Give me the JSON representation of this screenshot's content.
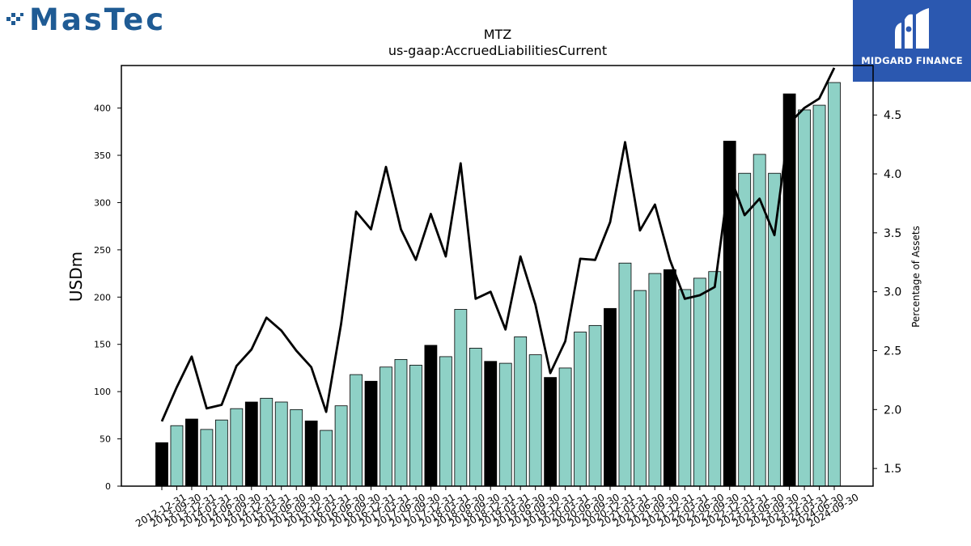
{
  "logos": {
    "left": {
      "text": "MasTec",
      "icon": "pixel-mark-icon",
      "color": "#1f5b94"
    },
    "right": {
      "text": "MIDGARD FINANCE",
      "icon": "midgard-bars-icon",
      "background": "#2b58b0"
    }
  },
  "chart_data": {
    "type": "bar",
    "title": "MTZ",
    "subtitle": "us-gaap:AccruedLiabilitiesCurrent",
    "ylabel": "USDm",
    "y2label": "Percentage of Assets",
    "ylim": [
      0,
      445
    ],
    "y2lim": [
      1.35,
      4.92
    ],
    "yticks": [
      0,
      50,
      100,
      150,
      200,
      250,
      300,
      350,
      400
    ],
    "y2ticks": [
      1.5,
      2.0,
      2.5,
      3.0,
      3.5,
      4.0,
      4.5
    ],
    "grid": false,
    "colors": {
      "q4_bar": "#000000",
      "other_bar": "#8ed1c6",
      "line": "#000000"
    },
    "categories": [
      "2012-12-31",
      "2013-09-30",
      "2013-12-31",
      "2014-03-31",
      "2014-06-30",
      "2014-09-30",
      "2014-12-31",
      "2015-03-31",
      "2015-06-30",
      "2015-09-30",
      "2015-12-31",
      "2016-03-31",
      "2016-06-30",
      "2016-09-30",
      "2016-12-31",
      "2017-03-31",
      "2017-06-30",
      "2017-09-30",
      "2017-12-31",
      "2018-03-31",
      "2018-06-30",
      "2018-09-30",
      "2018-12-31",
      "2019-03-31",
      "2019-06-30",
      "2019-09-30",
      "2019-12-31",
      "2020-03-31",
      "2020-06-30",
      "2020-09-30",
      "2020-12-31",
      "2021-03-31",
      "2021-06-30",
      "2021-09-30",
      "2021-12-31",
      "2022-03-31",
      "2022-06-30",
      "2022-09-30",
      "2022-12-31",
      "2023-03-31",
      "2023-06-30",
      "2023-09-30",
      "2023-12-31",
      "2024-03-31",
      "2024-06-30",
      "2024-09-30"
    ],
    "series": [
      {
        "type": "bar",
        "axis": "left",
        "values": [
          46,
          64,
          71,
          60,
          70,
          82,
          89,
          93,
          89,
          81,
          69,
          59,
          85,
          118,
          111,
          126,
          134,
          128,
          149,
          137,
          187,
          146,
          132,
          130,
          158,
          139,
          115,
          125,
          163,
          170,
          188,
          236,
          207,
          225,
          229,
          208,
          220,
          227,
          365,
          331,
          351,
          331,
          415,
          398,
          403,
          427
        ]
      },
      {
        "type": "line",
        "axis": "right",
        "values": [
          1.9,
          2.19,
          2.45,
          2.01,
          2.04,
          2.37,
          2.51,
          2.78,
          2.67,
          2.5,
          2.36,
          1.98,
          2.73,
          3.68,
          3.53,
          4.06,
          3.53,
          3.27,
          3.66,
          3.3,
          4.09,
          2.94,
          3.0,
          2.68,
          3.3,
          2.89,
          2.31,
          2.58,
          3.28,
          3.27,
          3.59,
          4.27,
          3.52,
          3.74,
          3.27,
          2.94,
          2.97,
          3.04,
          3.99,
          3.65,
          3.79,
          3.48,
          4.43,
          4.56,
          4.64,
          4.9
        ]
      }
    ]
  }
}
